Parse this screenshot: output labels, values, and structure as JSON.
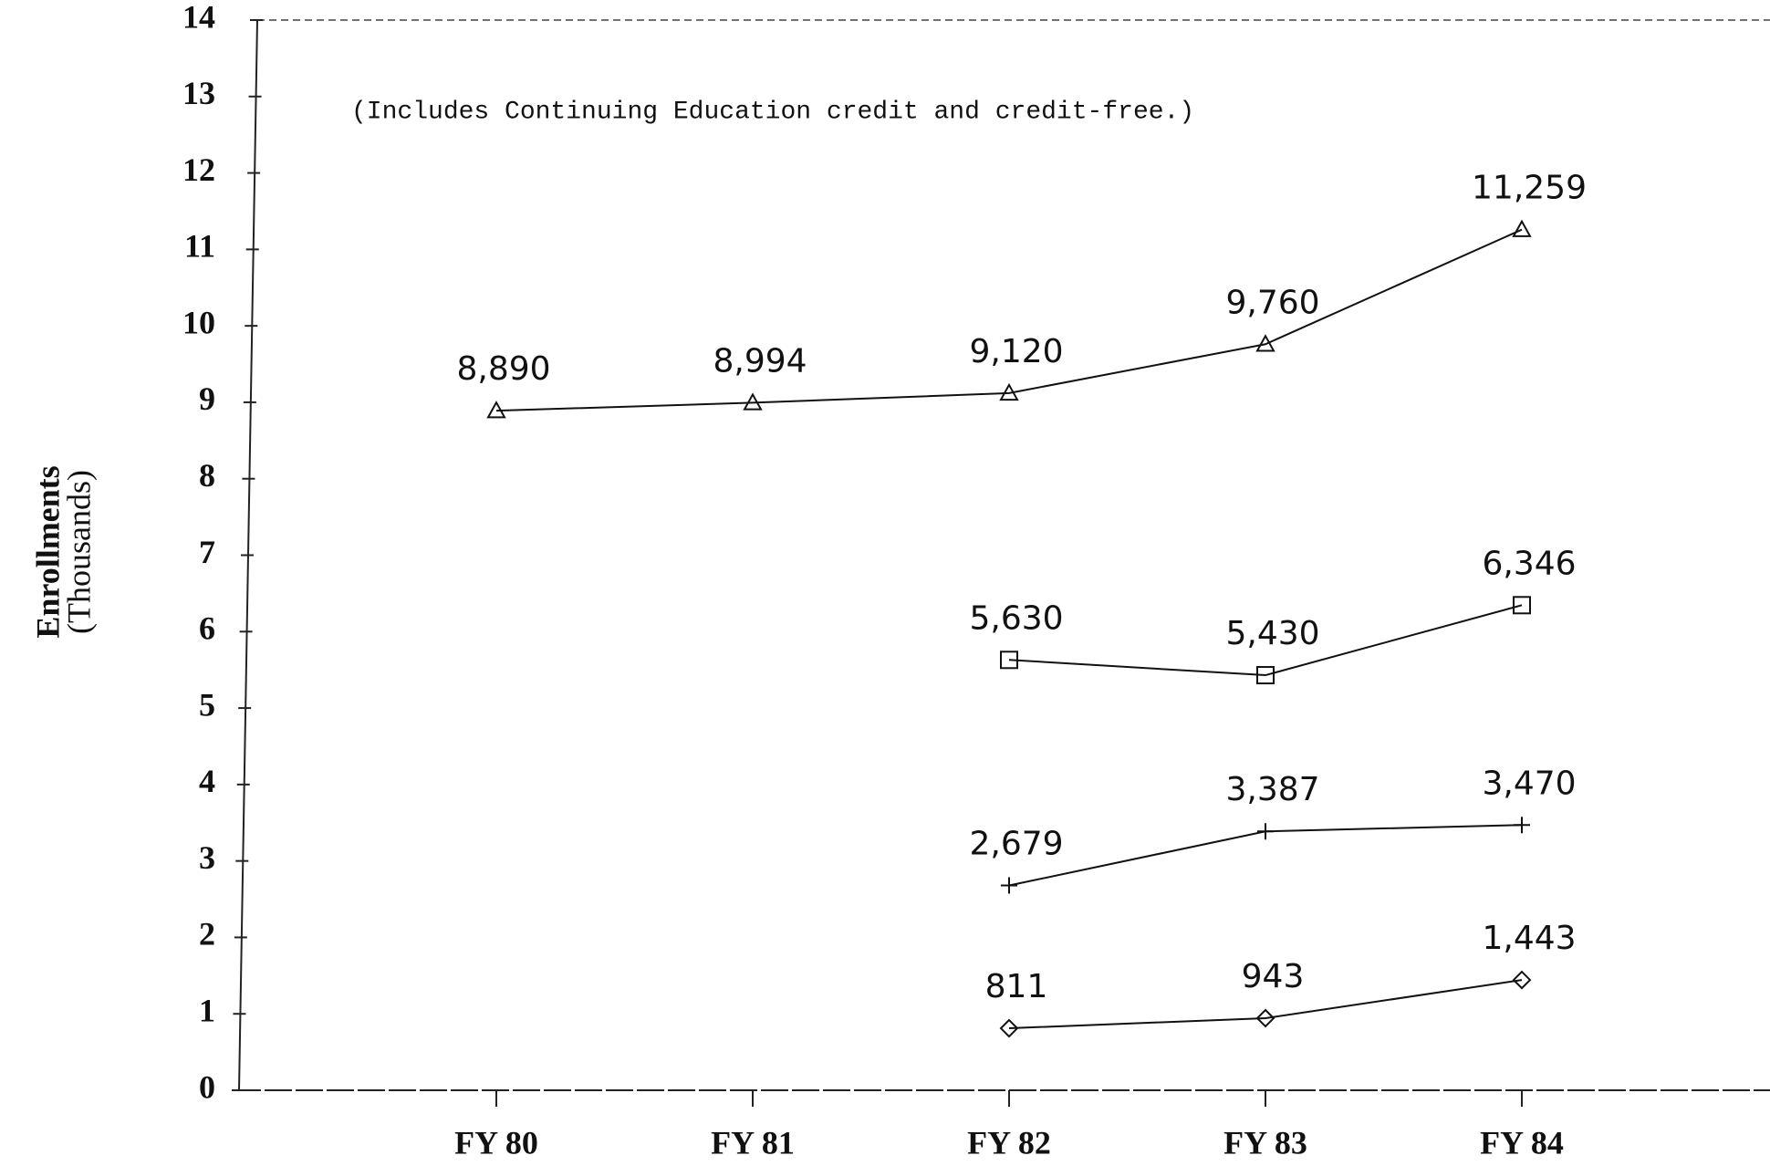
{
  "chart_data": {
    "type": "line",
    "annotation": "(Includes Continuing Education credit and credit-free.)",
    "y_label": [
      "Enrollments",
      "(Thousands)"
    ],
    "categories": [
      "FY 80",
      "FY 81",
      "FY 82",
      "FY 83",
      "FY 84"
    ],
    "series": [
      {
        "color": "#111111",
        "marker": "triangle",
        "values": [
          8.89,
          8.994,
          9.12,
          9.76,
          11.259
        ],
        "value_labels": [
          "8,890",
          "8,994",
          "9,120",
          "9,760",
          "11,259"
        ]
      },
      {
        "color": "#111111",
        "marker": "square",
        "values": [
          null,
          null,
          5.63,
          5.43,
          6.346
        ],
        "value_labels": [
          null,
          null,
          "5,630",
          "5,430",
          "6,346"
        ]
      },
      {
        "color": "#111111",
        "marker": "plus",
        "values": [
          null,
          null,
          2.679,
          3.387,
          3.47
        ],
        "value_labels": [
          null,
          null,
          "2,679",
          "3,387",
          "3,470"
        ]
      },
      {
        "color": "#111111",
        "marker": "diamond",
        "values": [
          null,
          null,
          0.811,
          0.943,
          1.443
        ],
        "value_labels": [
          null,
          null,
          "811",
          "943",
          "1,443"
        ]
      }
    ],
    "ylim": [
      0,
      14
    ],
    "yticks": [
      0,
      1,
      2,
      3,
      4,
      5,
      6,
      7,
      8,
      9,
      10,
      11,
      12,
      13,
      14
    ],
    "grid": false
  }
}
